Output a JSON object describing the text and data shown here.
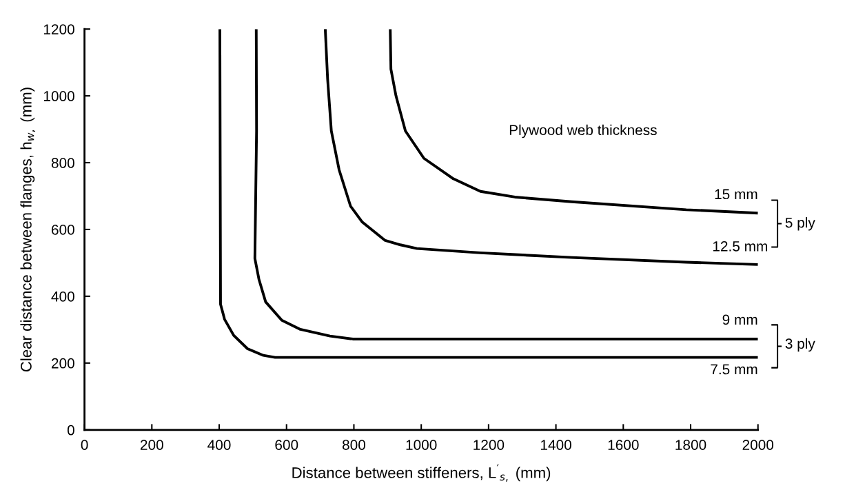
{
  "chart_data": {
    "type": "line",
    "xlabel": "Distance between stiffeners, L$^{′}$$_{s,}$ (mm)",
    "ylabel": "Clear distance between flanges, h$_{w,}$ (mm)",
    "xlim": [
      0,
      2000
    ],
    "ylim": [
      0,
      1200
    ],
    "xticks": [
      0,
      200,
      400,
      600,
      800,
      1000,
      1200,
      1400,
      1600,
      1800,
      2000
    ],
    "yticks": [
      0,
      200,
      400,
      600,
      800,
      1000,
      1200
    ],
    "grid": false,
    "marker": "none",
    "line_style": "solid",
    "series": [
      {
        "color": "#000000",
        "x": [
          908,
          910,
          925,
          953,
          1008,
          1095,
          1176,
          1278,
          1447,
          1787,
          2000
        ],
        "values": [
          1200,
          1080,
          1000,
          895,
          813,
          752,
          714,
          697,
          683,
          659,
          649
        ]
      },
      {
        "color": "#000000",
        "x": [
          715,
          722,
          733,
          756,
          790,
          825,
          893,
          938,
          987,
          1176,
          1447,
          1787,
          2000
        ],
        "values": [
          1200,
          1050,
          895,
          779,
          670,
          622,
          567,
          554,
          543,
          530,
          516,
          502,
          495
        ]
      },
      {
        "color": "#000000",
        "x": [
          510,
          511,
          506,
          518,
          538,
          586,
          641,
          729,
          797,
          2000
        ],
        "values": [
          1200,
          895,
          513,
          451,
          383,
          328,
          301,
          281,
          272,
          272
        ]
      },
      {
        "color": "#000000",
        "x": [
          402,
          404,
          416,
          443,
          484,
          531,
          566,
          2000
        ],
        "values": [
          1200,
          376,
          331,
          283,
          243,
          223,
          217,
          217
        ]
      }
    ],
    "annotations": [
      "15 mm",
      "12.5 mm",
      "9 mm",
      "7.5 mm",
      "Plywood web thickness",
      "5 ply",
      "3 ply"
    ]
  }
}
